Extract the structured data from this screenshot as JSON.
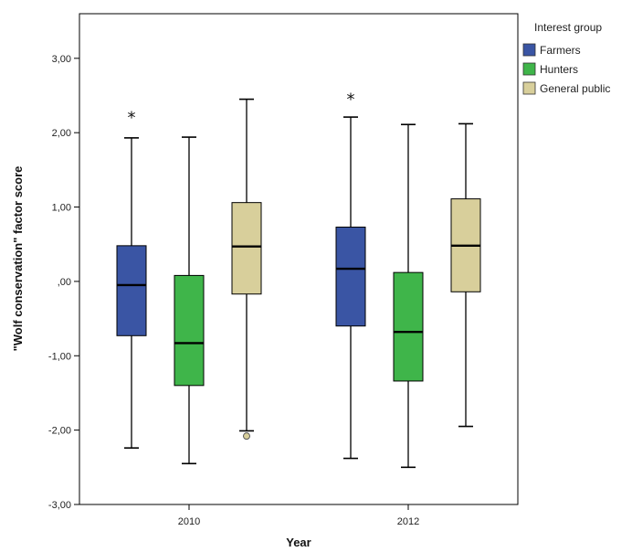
{
  "chart_data": {
    "type": "boxplot",
    "xlabel": "Year",
    "ylabel": "\"Wolf conservation\" factor score",
    "ylim": [
      -3,
      3.6
    ],
    "yticks": [
      -3,
      -2,
      -1,
      0,
      1,
      2,
      3
    ],
    "ytick_labels": [
      "-3,00",
      "-2,00",
      "-1,00",
      ",00",
      "1,00",
      "2,00",
      "3,00"
    ],
    "categories": [
      "2010",
      "2012"
    ],
    "legend": {
      "title": "Interest group",
      "position": "right"
    },
    "series": [
      {
        "name": "Farmers",
        "color": "#3a55a4",
        "boxes": [
          {
            "min": -2.24,
            "q1": -0.73,
            "median": -0.05,
            "q3": 0.48,
            "max": 1.93,
            "extremes": [
              2.24
            ],
            "outliers": []
          },
          {
            "min": -2.38,
            "q1": -0.6,
            "median": 0.17,
            "q3": 0.73,
            "max": 2.21,
            "extremes": [
              2.49
            ],
            "outliers": []
          }
        ]
      },
      {
        "name": "Hunters",
        "color": "#3fb54a",
        "boxes": [
          {
            "min": -2.45,
            "q1": -1.4,
            "median": -0.83,
            "q3": 0.08,
            "max": 1.94,
            "extremes": [],
            "outliers": []
          },
          {
            "min": -2.5,
            "q1": -1.34,
            "median": -0.68,
            "q3": 0.12,
            "max": 2.11,
            "extremes": [],
            "outliers": []
          }
        ]
      },
      {
        "name": "General public",
        "color": "#d8cf9b",
        "boxes": [
          {
            "min": -2.01,
            "q1": -0.17,
            "median": 0.47,
            "q3": 1.06,
            "max": 2.45,
            "extremes": [],
            "outliers": [
              -2.08
            ]
          },
          {
            "min": -1.95,
            "q1": -0.14,
            "median": 0.48,
            "q3": 1.11,
            "max": 2.12,
            "extremes": [],
            "outliers": []
          }
        ]
      }
    ]
  }
}
